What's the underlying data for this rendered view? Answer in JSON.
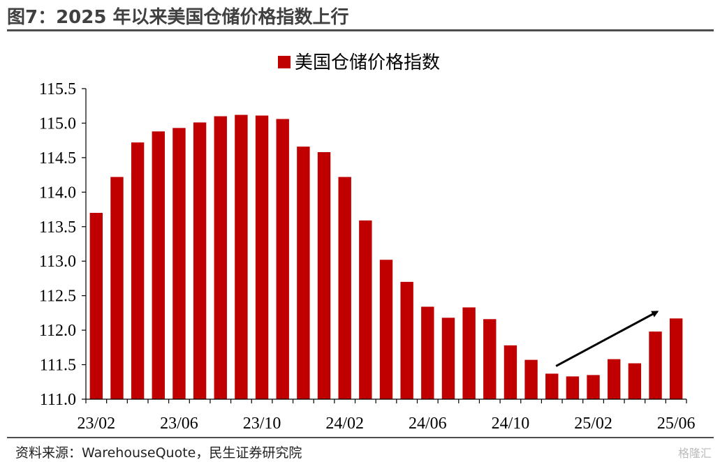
{
  "header": {
    "title": "图7：2025 年以来美国仓储价格指数上行"
  },
  "footer": {
    "source": "资料来源：WarehouseQuote，民生证券研究院",
    "watermark": "格隆汇"
  },
  "colors": {
    "bar": "#c00000",
    "axis": "#000000",
    "arrow": "#000000"
  },
  "chart_data": {
    "type": "bar",
    "title": "",
    "xlabel": "",
    "ylabel": "",
    "ylim": [
      111.0,
      115.5
    ],
    "yticks": [
      "111.0",
      "111.5",
      "112.0",
      "112.5",
      "113.0",
      "113.5",
      "114.0",
      "114.5",
      "115.0",
      "115.5"
    ],
    "categories": [
      "23/02",
      "23/03",
      "23/04",
      "23/05",
      "23/06",
      "23/07",
      "23/08",
      "23/09",
      "23/10",
      "23/11",
      "23/12",
      "24/01",
      "24/02",
      "24/03",
      "24/04",
      "24/05",
      "24/06",
      "24/07",
      "24/08",
      "24/09",
      "24/10",
      "24/11",
      "24/12",
      "25/01",
      "25/02",
      "25/03",
      "25/04",
      "25/05",
      "25/06"
    ],
    "xtick_labels": [
      "23/02",
      "23/06",
      "23/10",
      "24/02",
      "24/06",
      "24/10",
      "25/02",
      "25/06"
    ],
    "series": [
      {
        "name": "美国仓储价格指数",
        "values": [
          113.7,
          114.22,
          114.72,
          114.88,
          114.93,
          115.01,
          115.1,
          115.12,
          115.11,
          115.06,
          114.66,
          114.58,
          114.22,
          113.59,
          113.02,
          112.7,
          112.34,
          112.18,
          112.33,
          112.16,
          111.78,
          111.57,
          111.37,
          111.33,
          111.35,
          111.58,
          111.52,
          111.98,
          112.17
        ]
      }
    ],
    "legend": "top-center",
    "annotation": "upward arrow from 24/12 to 25/05",
    "grid": false
  }
}
